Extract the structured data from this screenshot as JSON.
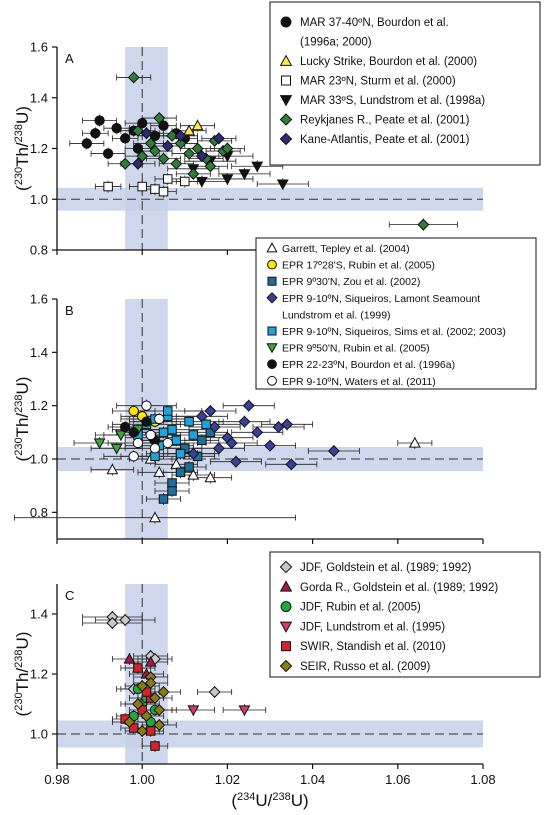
{
  "chart_data": [
    {
      "type": "scatter",
      "panel_label": "A",
      "xlim": [
        0.98,
        1.08
      ],
      "ylim": [
        0.8,
        1.6
      ],
      "yticks": [
        "0.8",
        "1.0",
        "1.2",
        "1.4",
        "1.6"
      ],
      "ylabel": "(230Th/238U)",
      "reference_band": {
        "x": [
          0.996,
          1.006
        ],
        "y": [
          0.955,
          1.045
        ],
        "x_line": 1.0,
        "y_line": 1.0
      },
      "legend_placement": "top-right",
      "series": [
        {
          "name": "MAR 37-40ºN, Bourdon et al. (1996a; 2000)",
          "legend_lines": [
            "MAR 37-40ºN, Bourdon et al.",
            "(1996a; 2000)"
          ],
          "marker": "circle",
          "fill": "#111111",
          "x": [
            0.987,
            0.989,
            0.99,
            0.992,
            0.994,
            0.996,
            0.998,
            0.999,
            1.0,
            1.003,
            1.005,
            1.008,
            1.01
          ],
          "y": [
            1.22,
            1.26,
            1.31,
            1.18,
            1.28,
            1.24,
            1.27,
            1.2,
            1.3,
            1.25,
            1.29,
            1.26,
            1.24
          ],
          "xerr": [
            0.004,
            0.003,
            0.004,
            0.004,
            0.003,
            0.003,
            0.004,
            0.003,
            0.004,
            0.004,
            0.003,
            0.004,
            0.003
          ]
        },
        {
          "name": "Lucky Strike, Bourdon et al. (2000)",
          "legend_lines": [
            "Lucky Strike, Bourdon et al. (2000)"
          ],
          "marker": "triangle-up",
          "fill": "#ffe94a",
          "x": [
            1.011,
            1.013
          ],
          "y": [
            1.27,
            1.29
          ],
          "xerr": [
            0.004,
            0.004
          ]
        },
        {
          "name": "MAR 23ºN, Sturm et al. (2000)",
          "legend_lines": [
            "MAR 23ºN, Sturm et al. (2000)"
          ],
          "marker": "square-open",
          "fill": "#ffffff",
          "x": [
            0.992,
            1.0,
            1.003,
            1.005,
            1.006,
            1.01
          ],
          "y": [
            1.05,
            1.05,
            1.04,
            1.03,
            1.08,
            1.07
          ],
          "xerr": [
            0.003,
            0.003,
            0.003,
            0.003,
            0.003,
            0.003
          ]
        },
        {
          "name": "MAR 33ºS, Lundstrom et al. (1998a)",
          "legend_lines": [
            "MAR 33ºS, Lundstrom et al. (1998a)"
          ],
          "marker": "triangle-down",
          "fill": "#111111",
          "x": [
            1.012,
            1.016,
            1.02,
            1.024,
            1.027,
            1.033,
            1.02,
            1.014
          ],
          "y": [
            1.12,
            1.15,
            1.08,
            1.1,
            1.13,
            1.06,
            1.17,
            1.07
          ],
          "xerr": [
            0.006,
            0.006,
            0.006,
            0.006,
            0.006,
            0.006,
            0.006,
            0.006
          ]
        },
        {
          "name": "Reykjanes R., Peate et al. (2001)",
          "legend_lines": [
            "Reykjanes R., Peate et al. (2001)"
          ],
          "marker": "diamond",
          "fill": "#2f7d3a",
          "x": [
            0.998,
            0.996,
            1.0,
            0.999,
            1.002,
            1.003,
            1.005,
            1.007,
            1.008,
            1.009,
            1.011,
            1.013,
            1.015,
            1.017,
            1.019,
            1.012,
            1.016,
            1.02,
            1.004,
            1.066
          ],
          "y": [
            1.48,
            1.14,
            1.17,
            1.27,
            1.22,
            1.19,
            1.16,
            1.25,
            1.14,
            1.22,
            1.18,
            1.2,
            1.16,
            1.23,
            1.19,
            1.1,
            1.13,
            1.2,
            1.32,
            0.9
          ],
          "xerr": [
            0.004,
            0.004,
            0.004,
            0.004,
            0.004,
            0.004,
            0.004,
            0.004,
            0.004,
            0.004,
            0.004,
            0.004,
            0.004,
            0.004,
            0.004,
            0.004,
            0.004,
            0.004,
            0.004,
            0.008
          ]
        },
        {
          "name": "Kane-Atlantis, Peate et al. (2001)",
          "legend_lines": [
            "Kane-Atlantis, Peate et al. (2001)"
          ],
          "marker": "diamond",
          "fill": "#2e2a75",
          "x": [
            0.999,
            1.001,
            1.006,
            1.009,
            1.014,
            1.018
          ],
          "y": [
            1.14,
            1.26,
            1.21,
            1.25,
            1.17,
            1.24
          ],
          "xerr": [
            0.004,
            0.004,
            0.004,
            0.004,
            0.004,
            0.004
          ]
        }
      ]
    },
    {
      "type": "scatter",
      "panel_label": "B",
      "xlim": [
        0.98,
        1.08
      ],
      "ylim": [
        0.7,
        1.6
      ],
      "yticks": [
        "0.8",
        "1.0",
        "1.2",
        "1.4",
        "1.6"
      ],
      "ylabel": "(230Th/238U)",
      "reference_band": {
        "x": [
          0.996,
          1.006
        ],
        "y": [
          0.955,
          1.045
        ],
        "x_line": 1.0,
        "y_line": 1.0
      },
      "legend_placement": "top-right",
      "series": [
        {
          "name": "Garrett, Tepley et al. (2004)",
          "legend_lines": [
            "Garrett, Tepley et al. (2004)"
          ],
          "marker": "triangle-up-open",
          "fill": "#ffffff",
          "x": [
            0.993,
            1.002,
            1.003,
            1.004,
            1.008,
            1.012,
            1.016,
            1.064
          ],
          "y": [
            0.96,
            1.0,
            0.78,
            0.95,
            0.98,
            0.94,
            0.93,
            1.06
          ],
          "xerr": [
            0.005,
            0.005,
            0.033,
            0.005,
            0.005,
            0.005,
            0.005,
            0.004
          ]
        },
        {
          "name": "EPR 17º28'S, Rubin et al. (2005)",
          "legend_lines": [
            "EPR 17º28'S, Rubin et al. (2005)"
          ],
          "marker": "circle",
          "fill": "#ffe500",
          "x": [
            0.998,
            1.0,
            1.003
          ],
          "y": [
            1.18,
            1.16,
            1.14
          ],
          "xerr": [
            0.005,
            0.005,
            0.005
          ]
        },
        {
          "name": "EPR 9º30'N, Zou et al. (2002)",
          "legend_lines": [
            "EPR 9º30'N, Zou et al. (2002)"
          ],
          "marker": "square",
          "fill": "#1f6f9e",
          "x": [
            1.005,
            1.007,
            1.009,
            1.011,
            1.01,
            1.013,
            1.014,
            1.016,
            1.007,
            1.009
          ],
          "y": [
            0.85,
            0.91,
            0.95,
            0.97,
            1.04,
            1.01,
            1.07,
            1.1,
            0.88,
            1.02
          ],
          "xerr": [
            0.004,
            0.004,
            0.004,
            0.004,
            0.004,
            0.004,
            0.004,
            0.004,
            0.004,
            0.004
          ]
        },
        {
          "name": "EPR 9-10ºN, Siqueiros, Lamont Seamount Lundstrom et al. (1999)",
          "legend_lines": [
            "EPR 9-10ºN, Siqueiros, Lamont Seamount",
            "Lundstrom et al. (1999)"
          ],
          "marker": "diamond",
          "fill": "#3a3f9a",
          "x": [
            1.014,
            1.016,
            1.017,
            1.018,
            1.02,
            1.022,
            1.024,
            1.025,
            1.027,
            1.03,
            1.032,
            1.034,
            1.035,
            1.045,
            1.012,
            1.021
          ],
          "y": [
            1.16,
            1.18,
            1.12,
            1.04,
            1.08,
            0.99,
            1.14,
            1.2,
            1.1,
            1.05,
            1.12,
            1.13,
            0.98,
            1.03,
            1.02,
            1.06
          ],
          "xerr": [
            0.006,
            0.006,
            0.006,
            0.006,
            0.006,
            0.006,
            0.006,
            0.006,
            0.006,
            0.006,
            0.006,
            0.006,
            0.006,
            0.006,
            0.006,
            0.006
          ]
        },
        {
          "name": "EPR 9-10ºN, Siqueiros, Sims et al. (2002; 2003)",
          "legend_lines": [
            "EPR 9-10ºN, Siqueiros, Sims et al. (2002; 2003)"
          ],
          "marker": "square",
          "fill": "#1fa3dc",
          "x": [
            0.999,
            1.001,
            1.003,
            1.004,
            1.006,
            1.007,
            1.008,
            1.009,
            1.011,
            1.012,
            1.003,
            1.006,
            1.015,
            1.005
          ],
          "y": [
            1.09,
            1.13,
            1.15,
            1.05,
            1.16,
            1.11,
            1.07,
            1.02,
            1.14,
            1.09,
            1.01,
            1.18,
            1.13,
            1.1
          ],
          "xerr": [
            0.008,
            0.008,
            0.008,
            0.008,
            0.008,
            0.008,
            0.008,
            0.008,
            0.008,
            0.008,
            0.008,
            0.008,
            0.008,
            0.008
          ]
        },
        {
          "name": "EPR 9º50'N, Rubin et al. (2005)",
          "legend_lines": [
            "EPR 9º50'N, Rubin et al. (2005)"
          ],
          "marker": "triangle-down",
          "fill": "#3aa83a",
          "x": [
            0.99,
            0.995,
            0.999,
            1.002,
            0.994
          ],
          "y": [
            1.06,
            1.09,
            1.11,
            1.08,
            1.04
          ],
          "xerr": [
            0.006,
            0.006,
            0.006,
            0.006,
            0.006
          ]
        },
        {
          "name": "EPR 22-23ºN, Bourdon et al. (1996a)",
          "legend_lines": [
            "EPR 22-23ºN, Bourdon et al. (1996a)"
          ],
          "marker": "circle",
          "fill": "#111111",
          "x": [
            0.996,
            0.998,
            1.001,
            1.003
          ],
          "y": [
            1.12,
            1.1,
            1.14,
            1.07
          ],
          "xerr": [
            0.004,
            0.004,
            0.004,
            0.004
          ]
        },
        {
          "name": "EPR 9-10ºN, Waters et al. (2011)",
          "legend_lines": [
            "EPR 9-10ºN, Waters et al. (2011)"
          ],
          "marker": "circle-open",
          "fill": "#ffffff",
          "x": [
            1.001,
            0.999,
            1.003,
            1.006,
            1.002,
            0.998,
            1.004
          ],
          "y": [
            1.2,
            1.06,
            1.04,
            1.06,
            1.09,
            1.01,
            1.15
          ],
          "xerr": [
            0.007,
            0.007,
            0.007,
            0.007,
            0.007,
            0.007,
            0.007
          ]
        }
      ]
    },
    {
      "type": "scatter",
      "panel_label": "C",
      "xlim": [
        0.98,
        1.08
      ],
      "ylim": [
        0.9,
        1.5
      ],
      "yticks": [
        "1.0",
        "1.2",
        "1.4"
      ],
      "ylabel": "(230Th/238U)",
      "xlabel": "(234U/238U)",
      "xticks": [
        "0.98",
        "1.00",
        "1.02",
        "1.04",
        "1.06",
        "1.08"
      ],
      "reference_band": {
        "x": [
          0.996,
          1.006
        ],
        "y": [
          0.955,
          1.045
        ],
        "x_line": 1.0,
        "y_line": 1.0
      },
      "legend_placement": "top-right",
      "series": [
        {
          "name": "JDF, Goldstein et al. (1989; 1992)",
          "legend_lines": [
            "JDF, Goldstein et al. (1989; 1992)"
          ],
          "marker": "diamond",
          "fill": "#c9c9c9",
          "x": [
            0.993,
            0.996,
            1.002,
            1.003,
            1.017,
            0.993,
            0.998
          ],
          "y": [
            1.39,
            1.38,
            1.26,
            1.25,
            1.14,
            1.37,
            1.15
          ],
          "xerr": [
            0.007,
            0.007,
            0.004,
            0.004,
            0.004,
            0.007,
            0.004
          ]
        },
        {
          "name": "Gorda R., Goldstein et al. (1989; 1992)",
          "legend_lines": [
            "Gorda R., Goldstein et al. (1989; 1992)"
          ],
          "marker": "triangle-up",
          "fill": "#a8174a",
          "x": [
            0.997,
            0.999,
            1.001,
            1.002
          ],
          "y": [
            1.25,
            1.22,
            1.2,
            1.24
          ],
          "xerr": [
            0.004,
            0.004,
            0.004,
            0.004
          ]
        },
        {
          "name": "JDF, Rubin et al. (2005)",
          "legend_lines": [
            "JDF, Rubin et al. (2005)"
          ],
          "marker": "circle",
          "fill": "#1faa3e",
          "x": [
            0.998,
            1.0,
            1.001,
            1.003,
            0.999,
            1.002
          ],
          "y": [
            1.06,
            1.1,
            1.12,
            1.08,
            1.15,
            1.04
          ],
          "xerr": [
            0.004,
            0.004,
            0.004,
            0.004,
            0.004,
            0.004
          ]
        },
        {
          "name": "JDF, Lundstrom et al. (1995)",
          "legend_lines": [
            "JDF, Lundstrom et al. (1995)"
          ],
          "marker": "triangle-down",
          "fill": "#d63a66",
          "x": [
            1.012,
            1.024
          ],
          "y": [
            1.08,
            1.08
          ],
          "xerr": [
            0.005,
            0.005
          ]
        },
        {
          "name": "SWIR, Standish et al. (2010)",
          "legend_lines": [
            "SWIR, Standish et al. (2010)"
          ],
          "marker": "square",
          "fill": "#d6222a",
          "x": [
            0.996,
            0.998,
            1.0,
            1.002,
            1.003,
            0.999,
            1.001,
            1.002
          ],
          "y": [
            1.05,
            1.02,
            1.08,
            1.12,
            0.96,
            1.22,
            1.14,
            1.01
          ],
          "xerr": [
            0.003,
            0.003,
            0.003,
            0.003,
            0.003,
            0.003,
            0.003,
            0.003
          ]
        },
        {
          "name": "SEIR, Russo et al. (2009)",
          "legend_lines": [
            "SEIR, Russo et al. (2009)"
          ],
          "marker": "diamond",
          "fill": "#8c7a14",
          "x": [
            0.997,
            0.999,
            1.0,
            1.001,
            1.002,
            1.003,
            1.004,
            1.005,
            1.0,
            1.002,
            1.004
          ],
          "y": [
            1.04,
            1.1,
            1.16,
            1.06,
            1.19,
            1.12,
            1.08,
            1.14,
            1.01,
            1.17,
            1.03
          ],
          "xerr": [
            0.004,
            0.004,
            0.004,
            0.004,
            0.004,
            0.004,
            0.004,
            0.004,
            0.004,
            0.004,
            0.004
          ]
        }
      ]
    }
  ],
  "axis_text": {
    "ylabel_main": "(",
    "ylabel_sup1": "230",
    "ylabel_mid": "Th/",
    "ylabel_sup2": "238",
    "ylabel_end": "U)",
    "xlabel_main": "(",
    "xlabel_sup1": "234",
    "xlabel_mid": "U/",
    "xlabel_sup2": "238",
    "xlabel_end": "U)"
  },
  "colors": {
    "band": "#c5d0e8",
    "axis": "#111111"
  }
}
